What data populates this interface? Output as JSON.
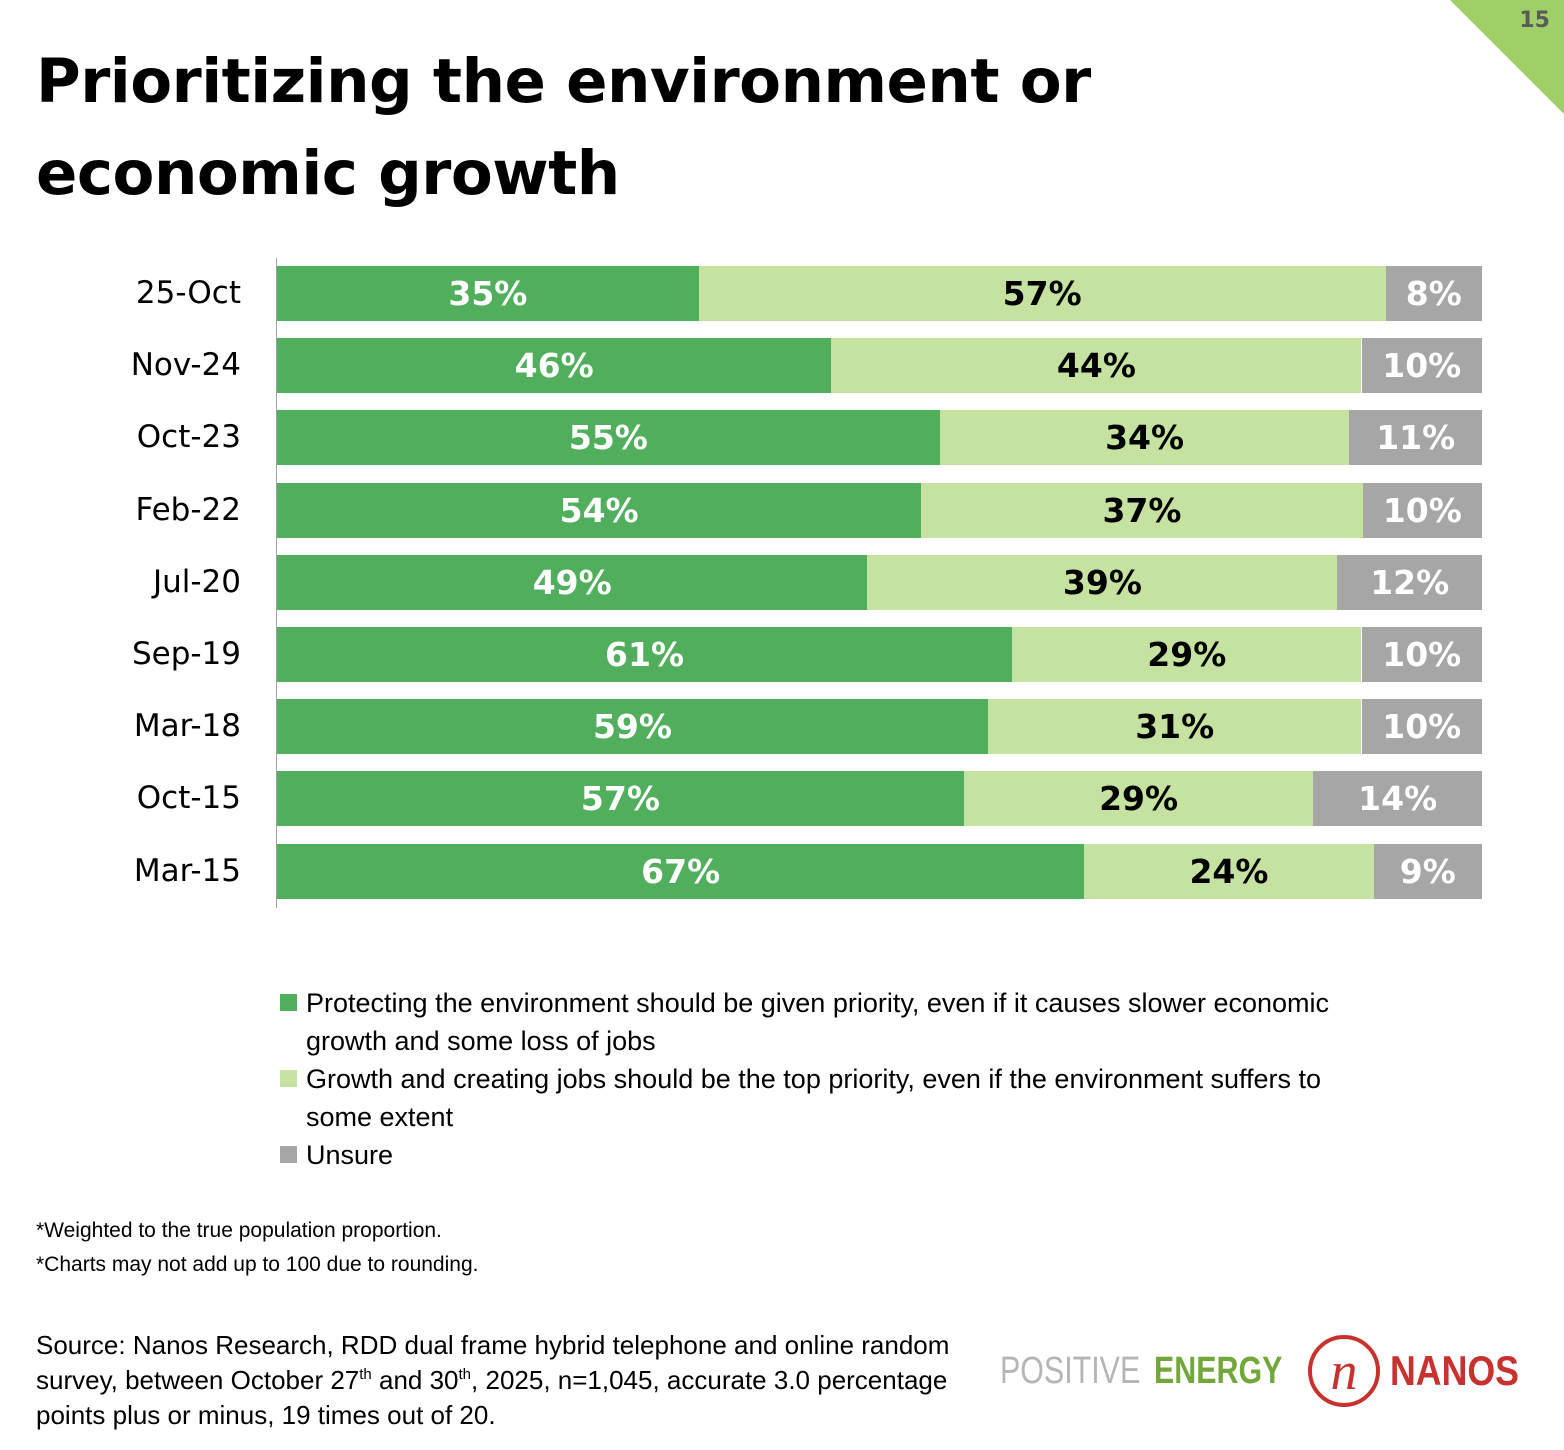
{
  "page": {
    "number": "15",
    "title": "Prioritizing the environment or economic growth",
    "accent_color": "#9fd067"
  },
  "chart_data": {
    "type": "bar",
    "orientation": "horizontal",
    "stacked": "percent",
    "title": "Prioritizing the environment or economic growth",
    "xlabel": "",
    "ylabel": "",
    "xlim": [
      0,
      100
    ],
    "grid": false,
    "legend_position": "bottom",
    "categories": [
      "25-Oct",
      "Nov-24",
      "Oct-23",
      "Feb-22",
      "Jul-20",
      "Sep-19",
      "Mar-18",
      "Oct-15",
      "Mar-15"
    ],
    "series": [
      {
        "name": "Protecting the environment should be given priority, even if it causes slower economic growth and some loss of jobs",
        "color": "#50ae5d",
        "label_color": "#ffffff",
        "values": [
          35,
          46,
          55,
          54,
          49,
          61,
          59,
          57,
          67
        ]
      },
      {
        "name": "Growth and creating jobs should be the top priority, even if the environment suffers to some extent",
        "color": "#c6e2a0",
        "label_color": "#000000",
        "values": [
          57,
          44,
          34,
          37,
          39,
          29,
          31,
          29,
          24
        ]
      },
      {
        "name": "Unsure",
        "color": "#a6a6a6",
        "label_color": "#ffffff",
        "values": [
          8,
          10,
          11,
          10,
          12,
          10,
          10,
          14,
          9
        ]
      }
    ],
    "value_suffix": "%"
  },
  "legend": [
    {
      "label": "Protecting the environment should be given priority, even if it causes slower economic growth and some loss of jobs",
      "color": "#50ae5d"
    },
    {
      "label": "Growth and creating jobs should be the top priority, even if the environment suffers to some extent",
      "color": "#c6e2a0"
    },
    {
      "label": "Unsure",
      "color": "#a6a6a6"
    }
  ],
  "notes": {
    "weighted": "*Weighted to the true population proportion.",
    "rounding": "*Charts may not add up to 100 due to rounding."
  },
  "source": {
    "part1": "Source: Nanos Research, RDD dual frame hybrid telephone and online random survey, between October 27",
    "sup1": "th",
    "part2": " and 30",
    "sup2": "th",
    "part3": ", 2025, n=1,045, accurate 3.0 percentage points plus or minus, 19 times out of 20."
  },
  "logo": {
    "positive": "POSITIVE",
    "energy": "ENERGY",
    "mark": "n",
    "brand": "NANOS"
  }
}
